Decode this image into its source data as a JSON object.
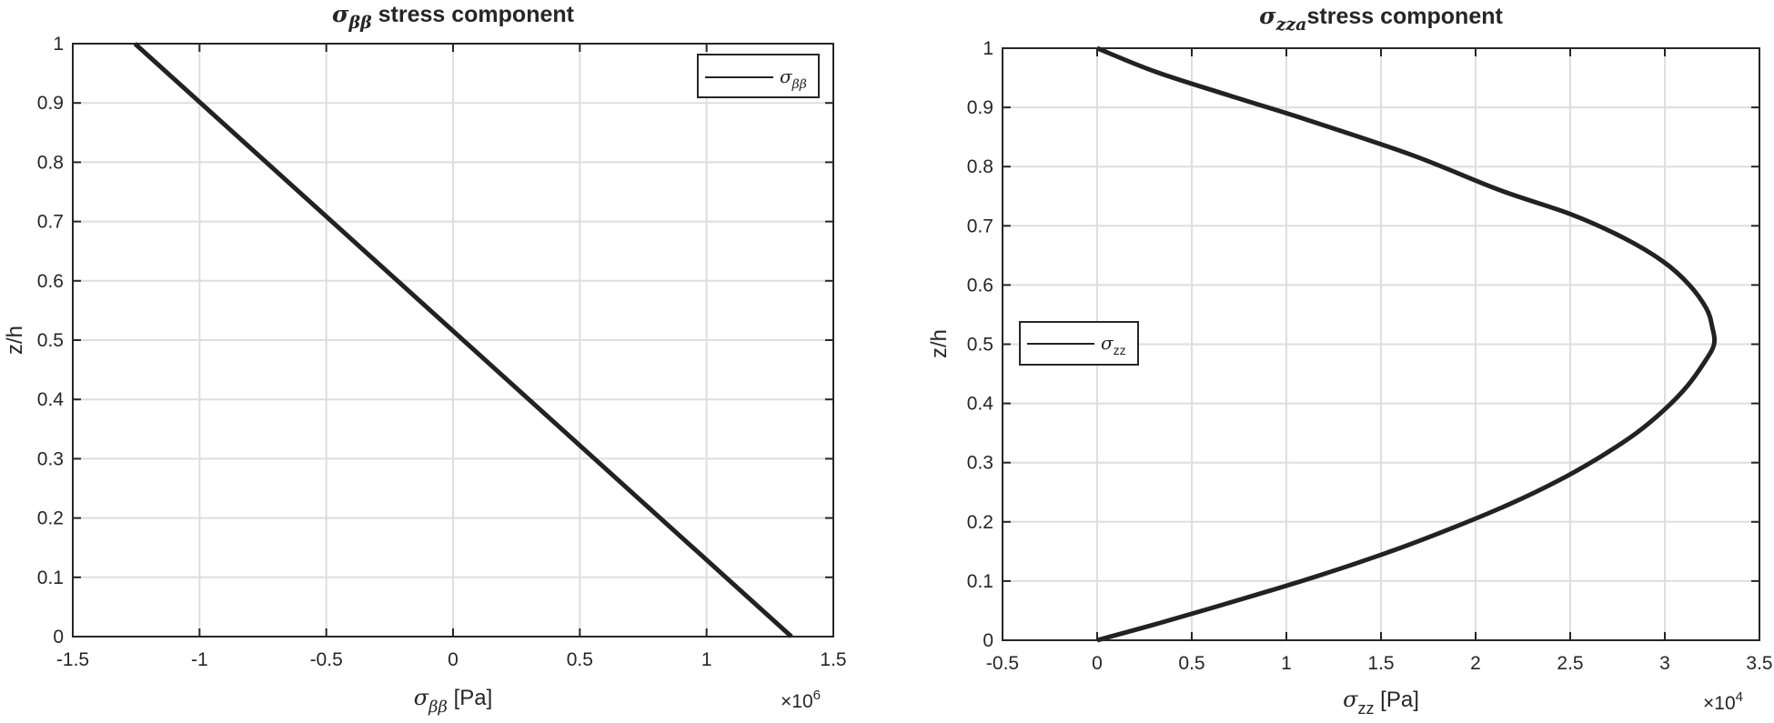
{
  "colors": {
    "line": "#222222",
    "grid": "#dedede",
    "axes": "#262626",
    "background": "#ffffff"
  },
  "chart_data": [
    {
      "type": "line",
      "title": {
        "symbol": "σ",
        "sub": "ββ",
        "rest": " stress component"
      },
      "xlabel": {
        "symbol": "σ",
        "sub": "ββ",
        "rest": " [Pa]"
      },
      "ylabel": "z/h",
      "x_exponent_label": {
        "base": "×10",
        "exp": "6"
      },
      "xlim": [
        -1500000.0,
        1500000.0
      ],
      "ylim": [
        0,
        1
      ],
      "xticks": [
        -1500000.0,
        -1000000.0,
        -500000.0,
        0,
        500000.0,
        1000000.0,
        1500000.0
      ],
      "xtick_labels": [
        "-1.5",
        "-1",
        "-0.5",
        "0",
        "0.5",
        "1",
        "1.5"
      ],
      "yticks": [
        0,
        0.1,
        0.2,
        0.3,
        0.4,
        0.5,
        0.6,
        0.7,
        0.8,
        0.9,
        1
      ],
      "ytick_labels": [
        "0",
        "0.1",
        "0.2",
        "0.3",
        "0.4",
        "0.5",
        "0.6",
        "0.7",
        "0.8",
        "0.9",
        "1"
      ],
      "grid": true,
      "legend": {
        "placement": "top-right",
        "symbol": "σ",
        "sub": "ββ"
      },
      "series": [
        {
          "x": [
            1335000.0,
            -1255000.0
          ],
          "y": [
            0,
            1
          ]
        }
      ]
    },
    {
      "type": "line",
      "title": {
        "symbol": "σ",
        "sub": "zza",
        "rest": "stress component"
      },
      "xlabel": {
        "symbol": "σ",
        "sub": "zz",
        "rest": " [Pa]"
      },
      "ylabel": "z/h",
      "x_exponent_label": {
        "base": "×10",
        "exp": "4"
      },
      "xlim": [
        -5000,
        35000
      ],
      "ylim": [
        0,
        1
      ],
      "xticks": [
        -5000,
        0,
        5000,
        10000,
        15000,
        20000,
        25000,
        30000,
        35000
      ],
      "xtick_labels": [
        "-0.5",
        "0",
        "0.5",
        "1",
        "1.5",
        "2",
        "2.5",
        "3",
        "3.5"
      ],
      "yticks": [
        0,
        0.1,
        0.2,
        0.3,
        0.4,
        0.5,
        0.6,
        0.7,
        0.8,
        0.9,
        1
      ],
      "ytick_labels": [
        "0",
        "0.1",
        "0.2",
        "0.3",
        "0.4",
        "0.5",
        "0.6",
        "0.7",
        "0.8",
        "0.9",
        "1"
      ],
      "grid": true,
      "legend": {
        "placement": "middle-left",
        "symbol": "σ",
        "sub": "zz"
      },
      "series": [
        {
          "x": [
            0,
            3400,
            7700,
            11800,
            15500,
            18800,
            21800,
            24400,
            26600,
            28500,
            30000,
            31200,
            32100,
            32600,
            32500,
            32200,
            31300,
            29900,
            27800,
            25000,
            21300,
            16600,
            11000,
            7000,
            3100,
            0
          ],
          "y": [
            0,
            0.03,
            0.07,
            0.11,
            0.15,
            0.19,
            0.23,
            0.27,
            0.31,
            0.35,
            0.39,
            0.43,
            0.47,
            0.5,
            0.53,
            0.56,
            0.6,
            0.64,
            0.68,
            0.72,
            0.76,
            0.82,
            0.88,
            0.92,
            0.96,
            1
          ]
        }
      ]
    }
  ]
}
